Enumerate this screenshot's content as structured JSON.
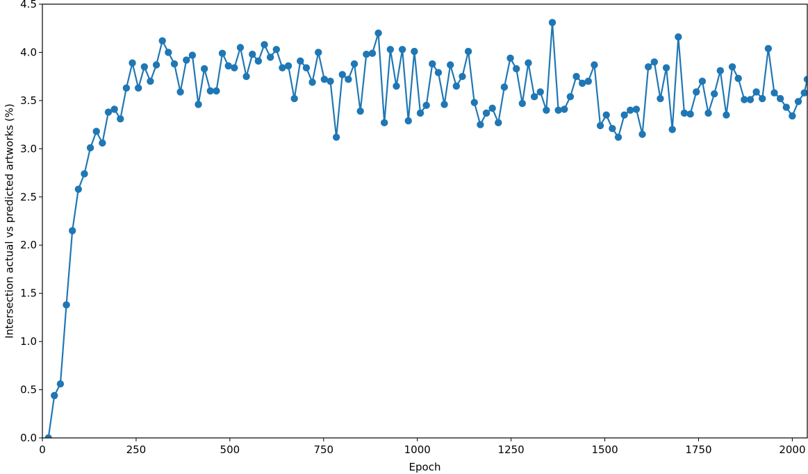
{
  "chart_data": {
    "type": "line",
    "xlabel": "Epoch",
    "ylabel": "Intersection actual vs predicted artworks (%)",
    "xlim": [
      0,
      2040
    ],
    "ylim": [
      0,
      4.5
    ],
    "xticks": [
      0,
      250,
      500,
      750,
      1000,
      1250,
      1500,
      1750,
      2000
    ],
    "xtick_labels": [
      "0",
      "250",
      "500",
      "750",
      "1000",
      "1250",
      "1500",
      "1750",
      "2000"
    ],
    "yticks": [
      0,
      0.5,
      1,
      1.5,
      2,
      2.5,
      3,
      3.5,
      4,
      4.5
    ],
    "ytick_labels": [
      "0.0",
      "0.5",
      "1.0",
      "1.5",
      "2.0",
      "2.5",
      "3.0",
      "3.5",
      "4.0",
      "4.5"
    ],
    "grid": false,
    "series": [
      {
        "color": "#1f77b4",
        "x": [
          16,
          32,
          48,
          64,
          80,
          96,
          112,
          128,
          144,
          160,
          176,
          192,
          208,
          224,
          240,
          256,
          272,
          288,
          304,
          320,
          336,
          352,
          368,
          384,
          400,
          416,
          432,
          448,
          464,
          480,
          496,
          512,
          528,
          544,
          560,
          576,
          592,
          608,
          624,
          640,
          656,
          672,
          688,
          704,
          720,
          736,
          752,
          768,
          784,
          800,
          816,
          832,
          848,
          864,
          880,
          896,
          912,
          928,
          944,
          960,
          976,
          992,
          1008,
          1024,
          1040,
          1056,
          1072,
          1088,
          1104,
          1120,
          1136,
          1152,
          1168,
          1184,
          1200,
          1216,
          1232,
          1248,
          1264,
          1280,
          1296,
          1312,
          1328,
          1344,
          1360,
          1376,
          1392,
          1408,
          1424,
          1440,
          1456,
          1472,
          1488,
          1504,
          1520,
          1536,
          1552,
          1568,
          1584,
          1600,
          1616,
          1632,
          1648,
          1664,
          1680,
          1696,
          1712,
          1728,
          1744,
          1760,
          1776,
          1792,
          1808,
          1824,
          1840,
          1856,
          1872,
          1888,
          1904,
          1920,
          1936,
          1952,
          1968,
          1984,
          2000,
          2016,
          2032,
          2040
        ],
        "y": [
          0.0,
          0.44,
          0.56,
          1.38,
          2.15,
          2.58,
          2.74,
          3.01,
          3.18,
          3.06,
          3.38,
          3.41,
          3.31,
          3.63,
          3.89,
          3.63,
          3.85,
          3.7,
          3.87,
          4.12,
          4.0,
          3.88,
          3.59,
          3.92,
          3.97,
          3.46,
          3.83,
          3.6,
          3.6,
          3.99,
          3.86,
          3.84,
          4.05,
          3.75,
          3.98,
          3.91,
          4.08,
          3.95,
          4.03,
          3.84,
          3.86,
          3.52,
          3.91,
          3.84,
          3.69,
          4.0,
          3.72,
          3.7,
          3.12,
          3.77,
          3.72,
          3.88,
          3.39,
          3.98,
          3.99,
          4.2,
          3.27,
          4.03,
          3.65,
          4.03,
          3.29,
          4.01,
          3.37,
          3.45,
          3.88,
          3.79,
          3.46,
          3.87,
          3.65,
          3.75,
          4.01,
          3.48,
          3.25,
          3.37,
          3.42,
          3.27,
          3.64,
          3.94,
          3.83,
          3.47,
          3.89,
          3.54,
          3.59,
          3.4,
          4.31,
          3.4,
          3.41,
          3.54,
          3.75,
          3.68,
          3.7,
          3.87,
          3.24,
          3.35,
          3.21,
          3.12,
          3.35,
          3.4,
          3.41,
          3.15,
          3.85,
          3.9,
          3.52,
          3.84,
          3.2,
          4.16,
          3.37,
          3.36,
          3.59,
          3.7,
          3.37,
          3.57,
          3.81,
          3.35,
          3.85,
          3.73,
          3.51,
          3.51,
          3.59,
          3.52,
          4.04,
          3.58,
          3.52,
          3.43,
          3.34,
          3.49,
          3.58,
          3.72
        ]
      }
    ]
  }
}
